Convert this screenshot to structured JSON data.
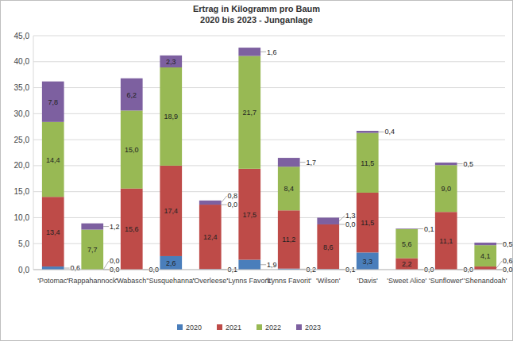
{
  "chart_data": {
    "type": "bar",
    "stacked": true,
    "data_labels": true,
    "grid": true,
    "legend": "bottom",
    "title": "Ertrag in Kilogramm pro Baum",
    "subtitle": "2020 bis 2023 - Junganlage",
    "categories": [
      "'Potomac'",
      "'Rappahannock'",
      "'Wabasch'",
      "'Susquehanna'",
      "'Overleese'",
      "'Lynns Favorit'",
      "'Lynns Favorit'",
      "'Wilson'",
      "'Davis'",
      "'Sweet Alice'",
      "'Sunflower'",
      "'Shenandoah'"
    ],
    "series": [
      {
        "name": "2020",
        "color": "#4a7ebb",
        "values": [
          0.6,
          0.0,
          0.0,
          2.6,
          0.1,
          1.9,
          0.2,
          0.1,
          3.3,
          0.0,
          0.0,
          0.0
        ],
        "value_labels": [
          "0,6",
          "0,0",
          "0,0",
          "2,6",
          "0,1",
          "1,9",
          "0,2",
          "0,1",
          "3,3",
          "0,0",
          "0,0",
          "0,0"
        ]
      },
      {
        "name": "2021",
        "color": "#be4b48",
        "values": [
          13.4,
          0.0,
          15.6,
          17.4,
          12.4,
          17.5,
          11.2,
          8.6,
          11.5,
          2.2,
          11.1,
          0.6
        ],
        "value_labels": [
          "13,4",
          "0,0",
          "15,6",
          "17,4",
          "12,4",
          "17,5",
          "11,2",
          "8,6",
          "11,5",
          "2,2",
          "11,1",
          "0,6"
        ]
      },
      {
        "name": "2022",
        "color": "#98b954",
        "values": [
          14.4,
          7.7,
          15.0,
          18.9,
          0.0,
          21.7,
          8.4,
          0.0,
          11.5,
          5.6,
          9.0,
          4.1
        ],
        "value_labels": [
          "14,4",
          "7,7",
          "15,0",
          "18,9",
          "0,0",
          "21,7",
          "8,4",
          "0,0",
          "11,5",
          "5,6",
          "9,0",
          "4,1"
        ]
      },
      {
        "name": "2023",
        "color": "#7d60a0",
        "values": [
          7.8,
          1.2,
          6.2,
          2.3,
          0.8,
          1.6,
          1.7,
          1.3,
          0.4,
          0.1,
          0.5,
          0.5
        ],
        "value_labels": [
          "7,8",
          "1,2",
          "6,2",
          "2,3",
          "0,8",
          "1,6",
          "1,7",
          "1,3",
          "0,4",
          "0,1",
          "0,5",
          "0,5"
        ]
      }
    ],
    "ylim": [
      0,
      45
    ],
    "yticks": [
      {
        "value": 0,
        "label": "0,0"
      },
      {
        "value": 5,
        "label": "5,0"
      },
      {
        "value": 10,
        "label": "10,0"
      },
      {
        "value": 15,
        "label": "15,0"
      },
      {
        "value": 20,
        "label": "20,0"
      },
      {
        "value": 25,
        "label": "25,0"
      },
      {
        "value": 30,
        "label": "30,0"
      },
      {
        "value": 35,
        "label": "35,0"
      },
      {
        "value": 40,
        "label": "40,0"
      },
      {
        "value": 45,
        "label": "45,0"
      }
    ]
  }
}
